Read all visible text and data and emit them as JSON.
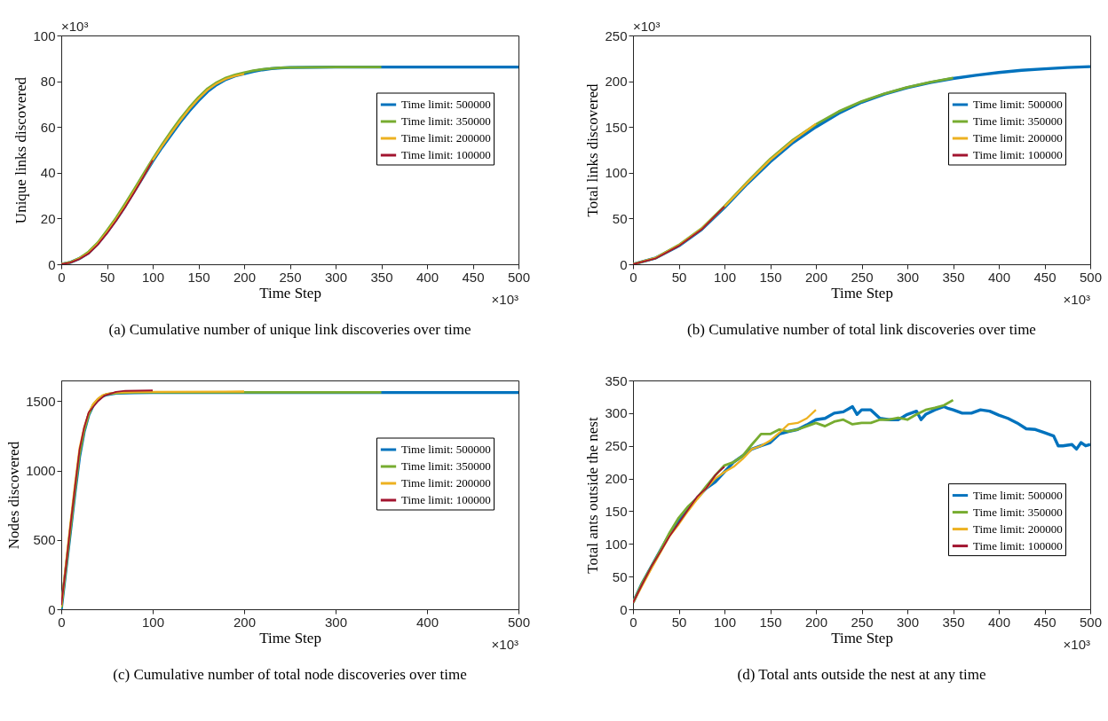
{
  "chart_data": [
    {
      "type": "line",
      "title": "(a) Cumulative number of unique link discoveries over time",
      "xlabel": "Time Step",
      "ylabel": "Unique links discovered",
      "annotations": [
        "×10³",
        "×10³"
      ],
      "xlim": [
        0,
        500
      ],
      "xticks": [
        0,
        50,
        100,
        150,
        200,
        250,
        300,
        350,
        400,
        450,
        500
      ],
      "ylim": [
        0,
        100
      ],
      "yticks": [
        0,
        20,
        40,
        60,
        80,
        100
      ],
      "legend": "top right",
      "series": [
        {
          "name": "Time limit: 500000",
          "color": "#0072bd",
          "x": [
            0,
            10,
            20,
            30,
            40,
            50,
            60,
            70,
            80,
            90,
            100,
            110,
            120,
            130,
            140,
            150,
            160,
            170,
            180,
            190,
            200,
            210,
            220,
            230,
            240,
            250,
            275,
            300,
            350,
            400,
            450,
            500
          ],
          "values": [
            0,
            0.8,
            2.5,
            5,
            9,
            14,
            19.5,
            25.5,
            32,
            38.5,
            45,
            51,
            56.5,
            62,
            67,
            71.5,
            75.5,
            78.5,
            80.8,
            82.3,
            83.3,
            84.3,
            85,
            85.5,
            85.8,
            86,
            86.1,
            86.2,
            86.2,
            86.2,
            86.2,
            86.2
          ]
        },
        {
          "name": "Time limit: 350000",
          "color": "#77ac30",
          "x": [
            0,
            10,
            20,
            30,
            40,
            50,
            60,
            70,
            80,
            90,
            100,
            110,
            120,
            130,
            140,
            150,
            160,
            170,
            180,
            190,
            200,
            210,
            220,
            230,
            240,
            250,
            275,
            300,
            350
          ],
          "values": [
            0,
            0.9,
            2.7,
            5.5,
            9.5,
            14.8,
            20.3,
            26.5,
            33,
            39.5,
            46,
            52.2,
            58,
            63.5,
            68.5,
            73,
            76.8,
            79.5,
            81.5,
            82.8,
            83.8,
            84.6,
            85.2,
            85.6,
            85.9,
            86,
            86.1,
            86.2,
            86.2
          ]
        },
        {
          "name": "Time limit: 200000",
          "color": "#edb120",
          "x": [
            0,
            10,
            20,
            30,
            40,
            50,
            60,
            70,
            80,
            90,
            100,
            110,
            120,
            130,
            140,
            150,
            160,
            170,
            180,
            190,
            200
          ],
          "values": [
            0,
            0.8,
            2.5,
            5,
            9,
            14,
            19.5,
            25.5,
            32,
            38.5,
            45.5,
            51.5,
            57.2,
            62.7,
            67.8,
            72.3,
            76.2,
            79,
            81,
            82.3,
            83.2
          ]
        },
        {
          "name": "Time limit: 100000",
          "color": "#a2142f",
          "x": [
            0,
            10,
            20,
            30,
            40,
            50,
            60,
            70,
            80,
            90,
            100
          ],
          "values": [
            0,
            0.7,
            2.3,
            4.7,
            8.6,
            13.5,
            19,
            25,
            31.5,
            38.3,
            45.5
          ]
        }
      ]
    },
    {
      "type": "line",
      "title": "(b) Cumulative number of total link discoveries over time",
      "xlabel": "Time Step",
      "ylabel": "Total links discovered",
      "annotations": [
        "×10³",
        "×10³"
      ],
      "xlim": [
        0,
        500
      ],
      "xticks": [
        0,
        50,
        100,
        150,
        200,
        250,
        300,
        350,
        400,
        450,
        500
      ],
      "ylim": [
        0,
        250
      ],
      "yticks": [
        0,
        50,
        100,
        150,
        200,
        250
      ],
      "legend": "top right",
      "series": [
        {
          "name": "Time limit: 500000",
          "color": "#0072bd",
          "x": [
            0,
            25,
            50,
            75,
            100,
            125,
            150,
            175,
            200,
            225,
            250,
            275,
            300,
            325,
            350,
            375,
            400,
            425,
            450,
            475,
            500
          ],
          "values": [
            0,
            7,
            20,
            38,
            62,
            88,
            112,
            133,
            150,
            165,
            177,
            186,
            193,
            198.5,
            203,
            206.5,
            209.5,
            212,
            213.5,
            215,
            216
          ]
        },
        {
          "name": "Time limit: 350000",
          "color": "#77ac30",
          "x": [
            0,
            25,
            50,
            75,
            100,
            125,
            150,
            175,
            200,
            225,
            250,
            275,
            300,
            325,
            350
          ],
          "values": [
            0,
            7,
            21,
            39,
            63.5,
            90,
            115,
            136,
            153,
            167,
            178,
            186.5,
            193.5,
            199,
            203.5
          ]
        },
        {
          "name": "Time limit: 200000",
          "color": "#edb120",
          "x": [
            0,
            25,
            50,
            75,
            100,
            125,
            150,
            175,
            200
          ],
          "values": [
            0,
            7,
            20.5,
            38.5,
            63,
            89,
            114,
            135,
            153.5
          ]
        },
        {
          "name": "Time limit: 100000",
          "color": "#a2142f",
          "x": [
            0,
            25,
            50,
            75,
            100
          ],
          "values": [
            0,
            6.5,
            20,
            38,
            63
          ]
        }
      ]
    },
    {
      "type": "line",
      "title": "(c) Cumulative number of total node discoveries over time",
      "xlabel": "Time Step",
      "ylabel": "Nodes discovered",
      "annotations": [
        "×10³"
      ],
      "xlim": [
        0,
        500
      ],
      "xticks": [
        0,
        100,
        200,
        300,
        400,
        500
      ],
      "ylim": [
        0,
        1650
      ],
      "yticks": [
        0,
        500,
        1000,
        1500
      ],
      "legend": "top right",
      "series": [
        {
          "name": "Time limit: 500000",
          "color": "#0072bd",
          "x": [
            0,
            5,
            10,
            15,
            20,
            25,
            30,
            35,
            40,
            45,
            50,
            60,
            80,
            100,
            200,
            350,
            500
          ],
          "values": [
            0,
            280,
            560,
            840,
            1100,
            1280,
            1400,
            1470,
            1510,
            1535,
            1548,
            1558,
            1562,
            1563,
            1563,
            1563,
            1563
          ]
        },
        {
          "name": "Time limit: 350000",
          "color": "#77ac30",
          "x": [
            0,
            5,
            10,
            15,
            20,
            25,
            30,
            35,
            40,
            45,
            50,
            60,
            80,
            100,
            200,
            350
          ],
          "values": [
            10,
            290,
            575,
            860,
            1120,
            1290,
            1405,
            1475,
            1512,
            1538,
            1550,
            1560,
            1564,
            1565,
            1565,
            1565
          ]
        },
        {
          "name": "Time limit: 200000",
          "color": "#edb120",
          "x": [
            0,
            5,
            10,
            15,
            20,
            25,
            30,
            35,
            40,
            45,
            50,
            60,
            80,
            100,
            200
          ],
          "values": [
            20,
            320,
            620,
            900,
            1160,
            1310,
            1415,
            1480,
            1518,
            1542,
            1553,
            1563,
            1567,
            1568,
            1570
          ]
        },
        {
          "name": "Time limit: 100000",
          "color": "#a2142f",
          "x": [
            0,
            5,
            10,
            15,
            20,
            25,
            30,
            40,
            47,
            60,
            70,
            100
          ],
          "values": [
            30,
            300,
            600,
            880,
            1150,
            1310,
            1420,
            1500,
            1540,
            1568,
            1575,
            1578
          ]
        }
      ]
    },
    {
      "type": "line",
      "title": "(d) Total ants outside the nest at any time",
      "xlabel": "Time Step",
      "ylabel": "Total ants outside the nest",
      "annotations": [
        "×10³"
      ],
      "xlim": [
        0,
        500
      ],
      "xticks": [
        0,
        50,
        100,
        150,
        200,
        250,
        300,
        350,
        400,
        450,
        500
      ],
      "ylim": [
        0,
        350
      ],
      "yticks": [
        0,
        50,
        100,
        150,
        200,
        250,
        300,
        350
      ],
      "legend": "right",
      "series": [
        {
          "name": "Time limit: 500000",
          "color": "#0072bd",
          "x": [
            0,
            10,
            20,
            30,
            40,
            50,
            60,
            70,
            80,
            90,
            100,
            110,
            120,
            130,
            140,
            150,
            160,
            170,
            180,
            190,
            200,
            210,
            220,
            230,
            240,
            245,
            250,
            260,
            270,
            280,
            290,
            300,
            310,
            315,
            320,
            330,
            340,
            345,
            350,
            360,
            370,
            380,
            390,
            400,
            410,
            420,
            430,
            440,
            450,
            460,
            465,
            470,
            480,
            485,
            490,
            495,
            500
          ],
          "values": [
            10,
            40,
            65,
            90,
            115,
            135,
            155,
            170,
            185,
            195,
            210,
            225,
            235,
            245,
            250,
            255,
            268,
            272,
            275,
            282,
            290,
            292,
            300,
            302,
            310,
            298,
            305,
            305,
            292,
            290,
            290,
            298,
            303,
            290,
            298,
            305,
            310,
            307,
            305,
            300,
            300,
            305,
            303,
            297,
            292,
            285,
            276,
            275,
            270,
            265,
            250,
            250,
            252,
            245,
            255,
            250,
            252
          ]
        },
        {
          "name": "Time limit: 350000",
          "color": "#77ac30",
          "x": [
            0,
            10,
            20,
            30,
            40,
            50,
            60,
            70,
            80,
            90,
            100,
            110,
            120,
            130,
            140,
            150,
            160,
            170,
            180,
            190,
            200,
            210,
            220,
            230,
            240,
            250,
            260,
            270,
            280,
            290,
            300,
            310,
            320,
            330,
            340,
            350
          ],
          "values": [
            10,
            40,
            65,
            90,
            117,
            140,
            157,
            170,
            188,
            205,
            220,
            225,
            235,
            252,
            268,
            268,
            275,
            272,
            275,
            280,
            285,
            280,
            287,
            290,
            283,
            285,
            285,
            290,
            290,
            293,
            290,
            298,
            305,
            308,
            312,
            320
          ]
        },
        {
          "name": "Time limit: 200000",
          "color": "#edb120",
          "x": [
            0,
            20,
            40,
            50,
            60,
            70,
            80,
            90,
            100,
            110,
            120,
            130,
            140,
            150,
            160,
            170,
            180,
            190,
            200
          ],
          "values": [
            10,
            62,
            112,
            130,
            150,
            168,
            185,
            200,
            210,
            218,
            230,
            245,
            250,
            258,
            270,
            283,
            285,
            292,
            305
          ]
        },
        {
          "name": "Time limit: 100000",
          "color": "#a2142f",
          "x": [
            0,
            10,
            20,
            30,
            40,
            50,
            60,
            70,
            80,
            90,
            95,
            100
          ],
          "values": [
            10,
            38,
            65,
            88,
            112,
            132,
            152,
            172,
            185,
            205,
            212,
            218
          ]
        }
      ]
    }
  ]
}
